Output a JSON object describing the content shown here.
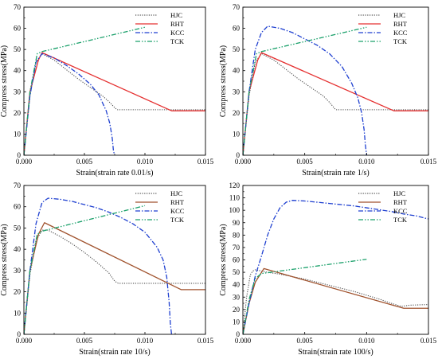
{
  "line_colors": {
    "HJC": "#4d4d4d",
    "RHT_red": "#e53030",
    "RHT_brown": "#a0522d",
    "KCC": "#1e3fd0",
    "TCK": "#1aa06a"
  },
  "chart_data": [
    {
      "type": "line",
      "xlabel": "Strain(strain rate 0.01/s)",
      "ylabel": "Compress stress(MPa)",
      "xlim": [
        0,
        0.015
      ],
      "ylim": [
        0,
        70
      ],
      "xticks": [
        "0.000",
        "0.005",
        "0.010",
        "0.015"
      ],
      "yticks": [
        "0",
        "10",
        "20",
        "30",
        "40",
        "50",
        "60",
        "70"
      ],
      "legend_position": "top-right",
      "series": [
        {
          "name": "HJC",
          "style": "dotted",
          "color": "HJC",
          "points": [
            [
              0,
              0
            ],
            [
              0.0005,
              28
            ],
            [
              0.001,
              44
            ],
            [
              0.0015,
              48
            ],
            [
              0.0025,
              45
            ],
            [
              0.0035,
              40.5
            ],
            [
              0.0045,
              36
            ],
            [
              0.0055,
              32
            ],
            [
              0.0065,
              28
            ],
            [
              0.007,
              25.5
            ],
            [
              0.0075,
              22.5
            ],
            [
              0.0077,
              21.5
            ],
            [
              0.015,
              21.5
            ]
          ]
        },
        {
          "name": "RHT",
          "style": "solid",
          "color": "RHT_red",
          "points": [
            [
              0,
              0
            ],
            [
              0.0005,
              30
            ],
            [
              0.0012,
              45
            ],
            [
              0.0015,
              48.5
            ],
            [
              0.0122,
              21
            ],
            [
              0.015,
              21
            ]
          ]
        },
        {
          "name": "KCC",
          "style": "dashdot",
          "color": "KCC",
          "points": [
            [
              0,
              0
            ],
            [
              0.0005,
              28
            ],
            [
              0.001,
              44
            ],
            [
              0.0015,
              48
            ],
            [
              0.0025,
              46
            ],
            [
              0.0035,
              42.5
            ],
            [
              0.0045,
              38.5
            ],
            [
              0.0055,
              33.5
            ],
            [
              0.0062,
              28.5
            ],
            [
              0.0068,
              21
            ],
            [
              0.0071,
              15
            ],
            [
              0.0073,
              8
            ],
            [
              0.0074,
              2
            ],
            [
              0.0075,
              0
            ]
          ]
        },
        {
          "name": "TCK",
          "style": "dashdotdot",
          "color": "TCK",
          "points": [
            [
              0,
              0
            ],
            [
              0.0005,
              30
            ],
            [
              0.0011,
              48
            ],
            [
              0.0015,
              49
            ],
            [
              0.01,
              60.5
            ]
          ]
        }
      ]
    },
    {
      "type": "line",
      "xlabel": "Strain(strain rate 1/s)",
      "ylabel": "Compress stress(MPa)",
      "xlim": [
        0,
        0.015
      ],
      "ylim": [
        0,
        70
      ],
      "xticks": [
        "0.000",
        "0.005",
        "0.010",
        "0.015"
      ],
      "yticks": [
        "0",
        "10",
        "20",
        "30",
        "40",
        "50",
        "60",
        "70"
      ],
      "legend_position": "top-right",
      "series": [
        {
          "name": "HJC",
          "style": "dotted",
          "color": "HJC",
          "points": [
            [
              0,
              0
            ],
            [
              0.0005,
              28
            ],
            [
              0.001,
              44
            ],
            [
              0.0015,
              48
            ],
            [
              0.0025,
              45
            ],
            [
              0.0035,
              40.5
            ],
            [
              0.0045,
              36
            ],
            [
              0.0055,
              32
            ],
            [
              0.0065,
              28
            ],
            [
              0.007,
              25
            ],
            [
              0.0075,
              21.5
            ],
            [
              0.015,
              21.5
            ]
          ]
        },
        {
          "name": "RHT",
          "style": "solid",
          "color": "RHT_red",
          "points": [
            [
              0,
              0
            ],
            [
              0.0005,
              30
            ],
            [
              0.0012,
              45
            ],
            [
              0.0015,
              48.5
            ],
            [
              0.0122,
              21
            ],
            [
              0.015,
              21
            ]
          ]
        },
        {
          "name": "KCC",
          "style": "dashdot",
          "color": "KCC",
          "points": [
            [
              0,
              0
            ],
            [
              0.0005,
              30
            ],
            [
              0.001,
              50
            ],
            [
              0.0015,
              58
            ],
            [
              0.002,
              61
            ],
            [
              0.003,
              60
            ],
            [
              0.004,
              58
            ],
            [
              0.005,
              55
            ],
            [
              0.006,
              52
            ],
            [
              0.007,
              48
            ],
            [
              0.008,
              42
            ],
            [
              0.0088,
              34
            ],
            [
              0.0093,
              27
            ],
            [
              0.0096,
              20
            ],
            [
              0.0098,
              12
            ],
            [
              0.0099,
              5
            ],
            [
              0.01,
              0
            ]
          ]
        },
        {
          "name": "TCK",
          "style": "dashdotdot",
          "color": "TCK",
          "points": [
            [
              0,
              0
            ],
            [
              0.0005,
              30
            ],
            [
              0.0011,
              48
            ],
            [
              0.0015,
              49
            ],
            [
              0.01,
              60.5
            ]
          ]
        }
      ]
    },
    {
      "type": "line",
      "xlabel": "Strain(strain rate 10/s)",
      "ylabel": "Compress stress(MPa)",
      "xlim": [
        0,
        0.015
      ],
      "ylim": [
        0,
        70
      ],
      "xticks": [
        "0.000",
        "0.005",
        "0.010",
        "0.015"
      ],
      "yticks": [
        "0",
        "10",
        "20",
        "30",
        "40",
        "50",
        "60",
        "70"
      ],
      "legend_position": "top-right",
      "series": [
        {
          "name": "HJC",
          "style": "dotted",
          "color": "HJC",
          "points": [
            [
              0,
              0
            ],
            [
              0.0005,
              28
            ],
            [
              0.001,
              44
            ],
            [
              0.0015,
              49
            ],
            [
              0.002,
              49
            ],
            [
              0.003,
              46
            ],
            [
              0.004,
              42.5
            ],
            [
              0.005,
              38.5
            ],
            [
              0.006,
              34
            ],
            [
              0.007,
              29
            ],
            [
              0.0075,
              25
            ],
            [
              0.0078,
              24
            ],
            [
              0.015,
              24
            ]
          ]
        },
        {
          "name": "RHT",
          "style": "solid",
          "color": "RHT_brown",
          "points": [
            [
              0,
              0
            ],
            [
              0.0005,
              30
            ],
            [
              0.0012,
              47
            ],
            [
              0.0017,
              52.5
            ],
            [
              0.013,
              21
            ],
            [
              0.015,
              21
            ]
          ]
        },
        {
          "name": "KCC",
          "style": "dashdot",
          "color": "KCC",
          "points": [
            [
              0,
              0
            ],
            [
              0.0005,
              30
            ],
            [
              0.001,
              52
            ],
            [
              0.0015,
              62
            ],
            [
              0.002,
              64
            ],
            [
              0.003,
              63.5
            ],
            [
              0.004,
              62.5
            ],
            [
              0.005,
              61
            ],
            [
              0.006,
              59.5
            ],
            [
              0.007,
              57.5
            ],
            [
              0.008,
              55
            ],
            [
              0.009,
              52
            ],
            [
              0.01,
              48
            ],
            [
              0.011,
              41
            ],
            [
              0.0115,
              35
            ],
            [
              0.0118,
              27
            ],
            [
              0.012,
              15
            ],
            [
              0.0121,
              5
            ],
            [
              0.0122,
              0
            ]
          ]
        },
        {
          "name": "TCK",
          "style": "dashdotdot",
          "color": "TCK",
          "points": [
            [
              0,
              0
            ],
            [
              0.0005,
              30
            ],
            [
              0.0011,
              47
            ],
            [
              0.0015,
              48.5
            ],
            [
              0.01,
              60.5
            ]
          ]
        }
      ]
    },
    {
      "type": "line",
      "xlabel": "Strain(strain rate 100/s)",
      "ylabel": "Compress stress(MPa)",
      "xlim": [
        0,
        0.015
      ],
      "ylim": [
        0,
        120
      ],
      "xticks": [
        "0.000",
        "0.005",
        "0.010",
        "0.015"
      ],
      "yticks": [
        "0",
        "10",
        "20",
        "30",
        "40",
        "50",
        "60",
        "70",
        "80",
        "90",
        "100",
        "110",
        "120"
      ],
      "legend_position": "top-right",
      "series": [
        {
          "name": "HJC",
          "style": "dotted",
          "color": "HJC",
          "points": [
            [
              0,
              0
            ],
            [
              0.0003,
              30
            ],
            [
              0.0006,
              48
            ],
            [
              0.0008,
              51
            ],
            [
              0.001,
              52
            ],
            [
              0.0015,
              51
            ],
            [
              0.002,
              50
            ],
            [
              0.003,
              48.5
            ],
            [
              0.004,
              46.5
            ],
            [
              0.005,
              44.5
            ],
            [
              0.006,
              42
            ],
            [
              0.007,
              39.5
            ],
            [
              0.008,
              37
            ],
            [
              0.009,
              34.5
            ],
            [
              0.01,
              31.5
            ],
            [
              0.011,
              28.5
            ],
            [
              0.012,
              25
            ],
            [
              0.0128,
              22.5
            ],
            [
              0.0135,
              23.5
            ],
            [
              0.015,
              24
            ]
          ]
        },
        {
          "name": "RHT",
          "style": "solid",
          "color": "RHT_brown",
          "points": [
            [
              0,
              0
            ],
            [
              0.0005,
              25
            ],
            [
              0.001,
              42
            ],
            [
              0.0017,
              53
            ],
            [
              0.013,
              21
            ],
            [
              0.015,
              21
            ]
          ]
        },
        {
          "name": "KCC",
          "style": "dashdot",
          "color": "KCC",
          "points": [
            [
              0,
              0
            ],
            [
              0.0005,
              25
            ],
            [
              0.001,
              47
            ],
            [
              0.0015,
              63
            ],
            [
              0.002,
              80
            ],
            [
              0.0025,
              93
            ],
            [
              0.003,
              102
            ],
            [
              0.0035,
              106.5
            ],
            [
              0.004,
              108
            ],
            [
              0.005,
              107.5
            ],
            [
              0.006,
              106.5
            ],
            [
              0.007,
              105.5
            ],
            [
              0.008,
              104.5
            ],
            [
              0.009,
              103.5
            ],
            [
              0.01,
              102
            ],
            [
              0.011,
              100.5
            ],
            [
              0.012,
              99
            ],
            [
              0.013,
              97
            ],
            [
              0.014,
              95.5
            ],
            [
              0.015,
              93
            ]
          ]
        },
        {
          "name": "TCK",
          "style": "dashdotdot",
          "color": "TCK",
          "points": [
            [
              0,
              0
            ],
            [
              0.0005,
              28
            ],
            [
              0.001,
              45
            ],
            [
              0.0015,
              49
            ],
            [
              0.01,
              60.5
            ]
          ]
        }
      ]
    }
  ]
}
